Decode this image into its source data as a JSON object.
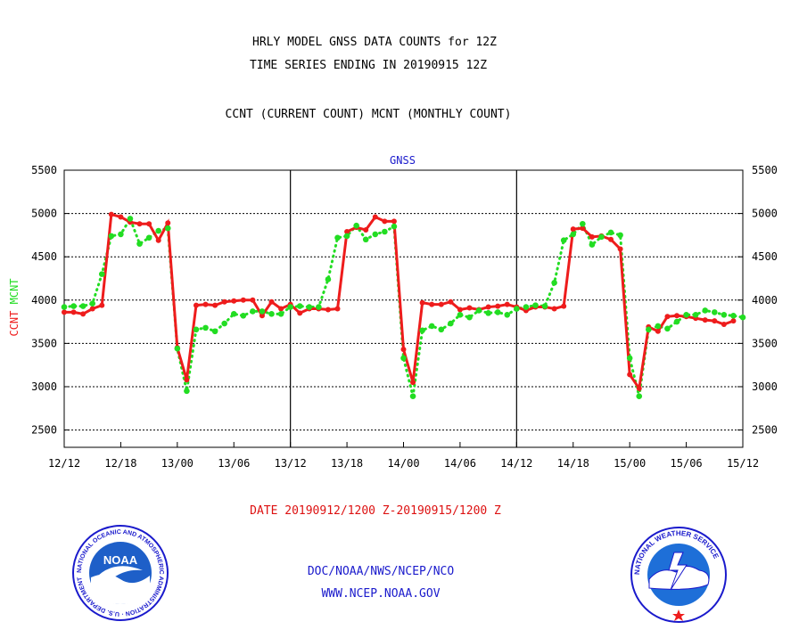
{
  "header": {
    "title_line1": "HRLY MODEL GNSS DATA COUNTS for 12Z",
    "title_line2": "TIME SERIES ENDING IN 20190915 12Z",
    "subtitle": "CCNT (CURRENT COUNT) MCNT (MONTHLY COUNT)"
  },
  "footer": {
    "date_range": "DATE 20190912/1200 Z-20190915/1200 Z",
    "org": "DOC/NOAA/NWS/NCEP/NCO",
    "url": "WWW.NCEP.NOAA.GOV"
  },
  "logos": {
    "noaa_text": "NOAA",
    "noaa_ring_text": "NATIONAL OCEANIC AND ATMOSPHERIC ADMINISTRATION · U.S. DEPARTMENT OF COMMERCE ·",
    "nws_ring_text": "NATIONAL WEATHER SERVICE"
  },
  "colors": {
    "ccnt": "#ee1c1c",
    "mcnt": "#22dd22",
    "title": "#000000",
    "panel_title": "#1a1acc",
    "date_text": "#dd1111",
    "footer_text": "#1a1acc"
  },
  "chart_data": {
    "type": "line",
    "title": "GNSS",
    "ylabel_left_ccnt": "CCNT",
    "ylabel_left_mcnt": "MCNT",
    "xlim": [
      0,
      72
    ],
    "ylim": [
      2300,
      5500
    ],
    "yticks": [
      2500,
      3000,
      3500,
      4000,
      4500,
      5000,
      5500
    ],
    "grid": true,
    "x_tick_labels": [
      {
        "x": 0,
        "label": "12/12"
      },
      {
        "x": 6,
        "label": "12/18"
      },
      {
        "x": 12,
        "label": "13/00"
      },
      {
        "x": 18,
        "label": "13/06"
      },
      {
        "x": 24,
        "label": "13/12"
      },
      {
        "x": 30,
        "label": "13/18"
      },
      {
        "x": 36,
        "label": "14/00"
      },
      {
        "x": 42,
        "label": "14/06"
      },
      {
        "x": 48,
        "label": "14/12"
      },
      {
        "x": 54,
        "label": "14/18"
      },
      {
        "x": 60,
        "label": "15/00"
      },
      {
        "x": 66,
        "label": "15/06"
      },
      {
        "x": 72,
        "label": "15/12"
      }
    ],
    "day_dividers": [
      24,
      48
    ],
    "series": [
      {
        "name": "CCNT",
        "values": [
          [
            0,
            3860
          ],
          [
            1,
            3860
          ],
          [
            2,
            3840
          ],
          [
            3,
            3900
          ],
          [
            4,
            3940
          ],
          [
            5,
            4990
          ],
          [
            6,
            4960
          ],
          [
            7,
            4900
          ],
          [
            8,
            4880
          ],
          [
            9,
            4880
          ],
          [
            10,
            4690
          ],
          [
            11,
            4890
          ],
          [
            12,
            3450
          ],
          [
            13,
            3080
          ],
          [
            14,
            3940
          ],
          [
            15,
            3950
          ],
          [
            16,
            3940
          ],
          [
            17,
            3980
          ],
          [
            18,
            3990
          ],
          [
            19,
            4000
          ],
          [
            20,
            4000
          ],
          [
            21,
            3820
          ],
          [
            22,
            3980
          ],
          [
            23,
            3900
          ],
          [
            24,
            3950
          ],
          [
            25,
            3850
          ],
          [
            26,
            3900
          ],
          [
            27,
            3900
          ],
          [
            28,
            3890
          ],
          [
            29,
            3900
          ],
          [
            30,
            4790
          ],
          [
            31,
            4840
          ],
          [
            32,
            4810
          ],
          [
            33,
            4960
          ],
          [
            34,
            4910
          ],
          [
            35,
            4910
          ],
          [
            36,
            3430
          ],
          [
            37,
            3050
          ],
          [
            38,
            3970
          ],
          [
            39,
            3950
          ],
          [
            40,
            3950
          ],
          [
            41,
            3980
          ],
          [
            42,
            3890
          ],
          [
            43,
            3910
          ],
          [
            44,
            3890
          ],
          [
            45,
            3920
          ],
          [
            46,
            3930
          ],
          [
            47,
            3950
          ],
          [
            48,
            3920
          ],
          [
            49,
            3880
          ],
          [
            50,
            3920
          ],
          [
            51,
            3920
          ],
          [
            52,
            3900
          ],
          [
            53,
            3930
          ],
          [
            54,
            4820
          ],
          [
            55,
            4830
          ],
          [
            56,
            4730
          ],
          [
            57,
            4740
          ],
          [
            58,
            4700
          ],
          [
            59,
            4590
          ],
          [
            60,
            3140
          ],
          [
            61,
            2980
          ],
          [
            62,
            3690
          ],
          [
            63,
            3640
          ],
          [
            64,
            3810
          ],
          [
            65,
            3820
          ],
          [
            66,
            3810
          ],
          [
            67,
            3790
          ],
          [
            68,
            3770
          ],
          [
            69,
            3760
          ],
          [
            70,
            3720
          ],
          [
            71,
            3760
          ]
        ]
      },
      {
        "name": "MCNT",
        "values": [
          [
            0,
            3920
          ],
          [
            1,
            3930
          ],
          [
            2,
            3930
          ],
          [
            3,
            3960
          ],
          [
            4,
            4300
          ],
          [
            5,
            4740
          ],
          [
            6,
            4760
          ],
          [
            7,
            4940
          ],
          [
            8,
            4650
          ],
          [
            9,
            4720
          ],
          [
            10,
            4800
          ],
          [
            11,
            4830
          ],
          [
            12,
            3440
          ],
          [
            13,
            2950
          ],
          [
            14,
            3660
          ],
          [
            15,
            3680
          ],
          [
            16,
            3640
          ],
          [
            17,
            3730
          ],
          [
            18,
            3840
          ],
          [
            19,
            3820
          ],
          [
            20,
            3870
          ],
          [
            21,
            3870
          ],
          [
            22,
            3840
          ],
          [
            23,
            3840
          ],
          [
            24,
            3920
          ],
          [
            25,
            3930
          ],
          [
            26,
            3920
          ],
          [
            27,
            3920
          ],
          [
            28,
            4240
          ],
          [
            29,
            4720
          ],
          [
            30,
            4740
          ],
          [
            31,
            4860
          ],
          [
            32,
            4700
          ],
          [
            33,
            4760
          ],
          [
            34,
            4790
          ],
          [
            35,
            4850
          ],
          [
            36,
            3330
          ],
          [
            37,
            2890
          ],
          [
            38,
            3650
          ],
          [
            39,
            3700
          ],
          [
            40,
            3660
          ],
          [
            41,
            3730
          ],
          [
            42,
            3830
          ],
          [
            43,
            3800
          ],
          [
            44,
            3880
          ],
          [
            45,
            3850
          ],
          [
            46,
            3860
          ],
          [
            47,
            3830
          ],
          [
            48,
            3900
          ],
          [
            49,
            3920
          ],
          [
            50,
            3940
          ],
          [
            51,
            3930
          ],
          [
            52,
            4200
          ],
          [
            53,
            4690
          ],
          [
            54,
            4760
          ],
          [
            55,
            4880
          ],
          [
            56,
            4640
          ],
          [
            57,
            4730
          ],
          [
            58,
            4780
          ],
          [
            59,
            4750
          ],
          [
            60,
            3330
          ],
          [
            61,
            2890
          ],
          [
            62,
            3660
          ],
          [
            63,
            3700
          ],
          [
            64,
            3670
          ],
          [
            65,
            3750
          ],
          [
            66,
            3830
          ],
          [
            67,
            3830
          ],
          [
            68,
            3880
          ],
          [
            69,
            3860
          ],
          [
            70,
            3830
          ],
          [
            71,
            3820
          ],
          [
            72,
            3800
          ]
        ]
      }
    ]
  }
}
